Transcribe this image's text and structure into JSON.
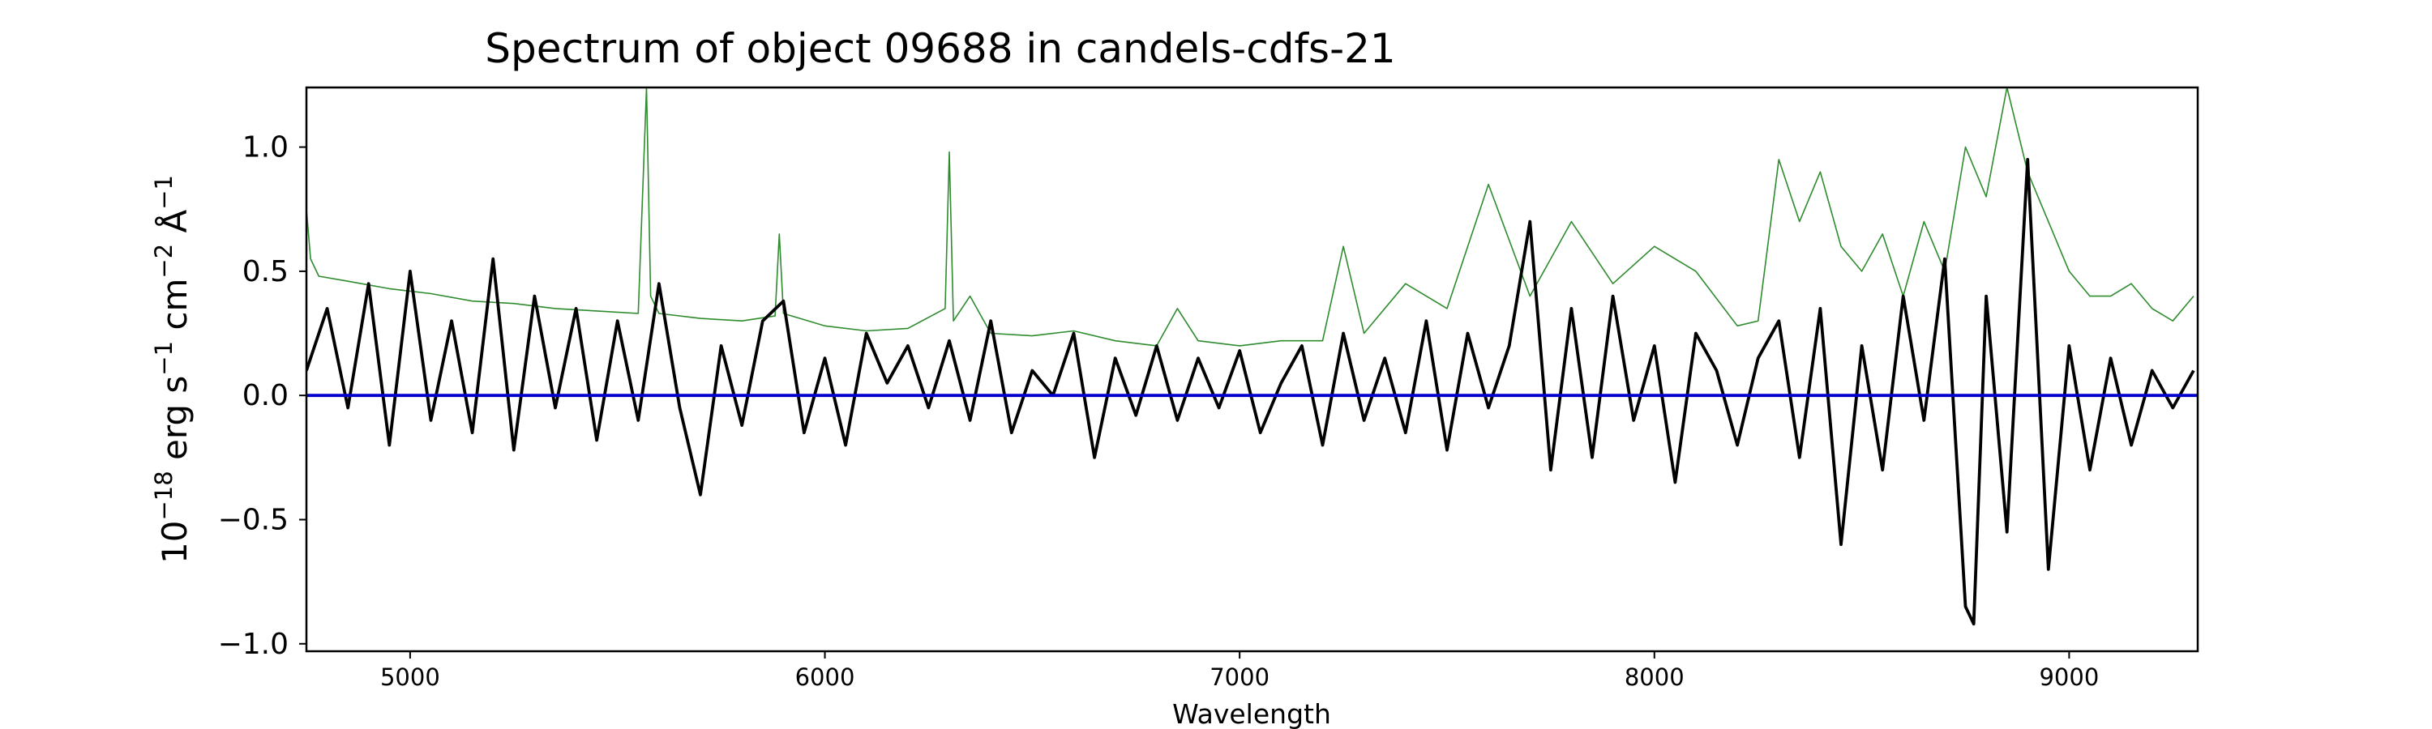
{
  "chart_data": {
    "type": "line",
    "title": "Spectrum of object 09688 in candels-cdfs-21",
    "xlabel": "Wavelength",
    "ylabel": "10^-18 erg s^-1 cm^-2 Å^-1",
    "ylabel_parts": {
      "base": "10",
      "exp": "−18",
      "unit_erg": "erg s",
      "exp_s": "−1",
      "unit_cm": "cm",
      "exp_cm": "−2",
      "unit_a": "Å",
      "exp_a": "−1"
    },
    "xlim": [
      4750,
      9310
    ],
    "ylim": [
      -1.03,
      1.24
    ],
    "xticks": [
      5000,
      6000,
      7000,
      8000,
      9000
    ],
    "xtick_labels": [
      "5000",
      "6000",
      "7000",
      "8000",
      "9000"
    ],
    "yticks": [
      -1.0,
      -0.5,
      0.0,
      0.5,
      1.0
    ],
    "ytick_labels": [
      "−1.0",
      "−0.5",
      "0.0",
      "0.5",
      "1.0"
    ],
    "grid": false,
    "colors": {
      "flux": "#000000",
      "noise": "#2e8b2e",
      "zero_line": "#0000cc"
    },
    "series": [
      {
        "role": "flux",
        "x": [
          4750,
          4800,
          4850,
          4900,
          4950,
          5000,
          5050,
          5100,
          5150,
          5200,
          5250,
          5300,
          5350,
          5400,
          5450,
          5500,
          5550,
          5600,
          5650,
          5700,
          5750,
          5800,
          5850,
          5900,
          5950,
          6000,
          6050,
          6100,
          6150,
          6200,
          6250,
          6300,
          6350,
          6400,
          6450,
          6500,
          6550,
          6600,
          6650,
          6700,
          6750,
          6800,
          6850,
          6900,
          6950,
          7000,
          7050,
          7100,
          7150,
          7200,
          7250,
          7300,
          7350,
          7400,
          7450,
          7500,
          7550,
          7600,
          7650,
          7700,
          7750,
          7800,
          7850,
          7900,
          7950,
          8000,
          8050,
          8100,
          8150,
          8200,
          8250,
          8300,
          8350,
          8400,
          8450,
          8500,
          8550,
          8600,
          8650,
          8700,
          8750,
          8770,
          8800,
          8850,
          8900,
          8950,
          9000,
          9050,
          9100,
          9150,
          9200,
          9250,
          9300
        ],
        "y": [
          0.1,
          0.35,
          -0.05,
          0.45,
          -0.2,
          0.5,
          -0.1,
          0.3,
          -0.15,
          0.55,
          -0.22,
          0.4,
          -0.05,
          0.35,
          -0.18,
          0.3,
          -0.1,
          0.45,
          -0.05,
          -0.4,
          0.2,
          -0.12,
          0.3,
          0.38,
          -0.15,
          0.15,
          -0.2,
          0.25,
          0.05,
          0.2,
          -0.05,
          0.22,
          -0.1,
          0.3,
          -0.15,
          0.1,
          0.0,
          0.25,
          -0.25,
          0.15,
          -0.08,
          0.2,
          -0.1,
          0.15,
          -0.05,
          0.18,
          -0.15,
          0.05,
          0.2,
          -0.2,
          0.25,
          -0.1,
          0.15,
          -0.15,
          0.3,
          -0.22,
          0.25,
          -0.05,
          0.2,
          0.7,
          -0.3,
          0.35,
          -0.25,
          0.4,
          -0.1,
          0.2,
          -0.35,
          0.25,
          0.1,
          -0.2,
          0.15,
          0.3,
          -0.25,
          0.35,
          -0.6,
          0.2,
          -0.3,
          0.4,
          -0.1,
          0.55,
          -0.85,
          -0.92,
          0.4,
          -0.55,
          0.95,
          -0.7,
          0.2,
          -0.3,
          0.15,
          -0.2,
          0.1,
          -0.05,
          0.1
        ]
      },
      {
        "role": "noise",
        "x": [
          4750,
          4760,
          4780,
          4850,
          4950,
          5050,
          5150,
          5250,
          5350,
          5450,
          5550,
          5570,
          5580,
          5600,
          5700,
          5800,
          5880,
          5890,
          5900,
          6000,
          6100,
          6200,
          6290,
          6300,
          6310,
          6350,
          6400,
          6500,
          6600,
          6700,
          6800,
          6850,
          6900,
          7000,
          7100,
          7200,
          7250,
          7300,
          7400,
          7500,
          7600,
          7700,
          7800,
          7900,
          8000,
          8100,
          8200,
          8250,
          8300,
          8350,
          8400,
          8450,
          8500,
          8550,
          8600,
          8650,
          8700,
          8750,
          8800,
          8850,
          8900,
          8950,
          9000,
          9050,
          9100,
          9150,
          9200,
          9250,
          9300
        ],
        "y": [
          0.75,
          0.55,
          0.48,
          0.46,
          0.43,
          0.41,
          0.38,
          0.37,
          0.35,
          0.34,
          0.33,
          1.24,
          0.4,
          0.33,
          0.31,
          0.3,
          0.32,
          0.65,
          0.33,
          0.28,
          0.26,
          0.27,
          0.35,
          0.98,
          0.3,
          0.4,
          0.25,
          0.24,
          0.26,
          0.22,
          0.2,
          0.35,
          0.22,
          0.2,
          0.22,
          0.22,
          0.6,
          0.25,
          0.45,
          0.35,
          0.85,
          0.4,
          0.7,
          0.45,
          0.6,
          0.5,
          0.28,
          0.3,
          0.95,
          0.7,
          0.9,
          0.6,
          0.5,
          0.65,
          0.4,
          0.7,
          0.5,
          1.0,
          0.8,
          1.24,
          0.9,
          0.7,
          0.5,
          0.4,
          0.4,
          0.45,
          0.35,
          0.3,
          0.4
        ]
      },
      {
        "role": "zero_line",
        "x": [
          4750,
          9310
        ],
        "y": [
          0.0,
          0.0
        ]
      }
    ]
  }
}
